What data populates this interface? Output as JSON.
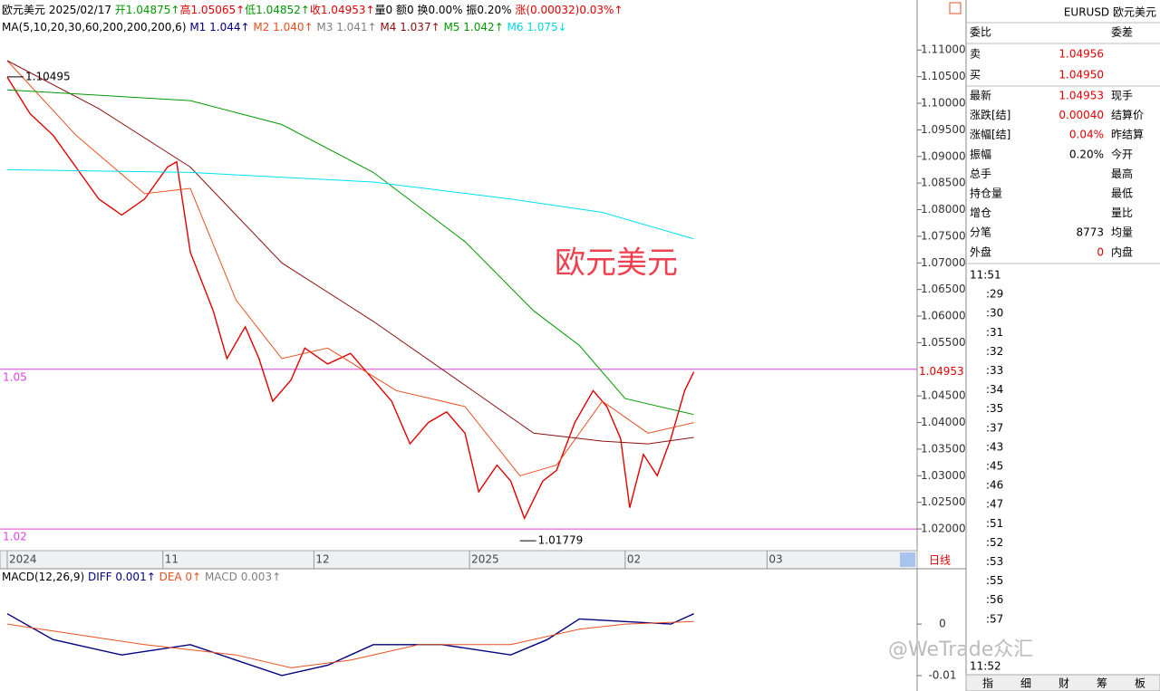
{
  "header": {
    "segments": [
      {
        "text": "欧元美元 2025/02/17 ",
        "color": "#000000"
      },
      {
        "text": "开1.04875↑",
        "color": "#009900"
      },
      {
        "text": "高1.05065↑",
        "color": "#e00000"
      },
      {
        "text": "低1.04852↑",
        "color": "#009900"
      },
      {
        "text": "收1.04953↑",
        "color": "#e00000"
      },
      {
        "text": "量0 额0 换0.00% 振0.20% ",
        "color": "#000000"
      },
      {
        "text": "涨(0.00032)0.03%↑",
        "color": "#e00000"
      }
    ]
  },
  "ma_legend": {
    "segments": [
      {
        "text": "MA(5,10,20,30,60,200,200,200,6)  ",
        "color": "#000000"
      },
      {
        "text": "M1 1.044↑  ",
        "color": "#000080"
      },
      {
        "text": "M2 1.040↑  ",
        "color": "#e85020"
      },
      {
        "text": "M3 1.041↑  ",
        "color": "#808080"
      },
      {
        "text": "M4 1.037↑  ",
        "color": "#8b1010"
      },
      {
        "text": "M5 1.042↑  ",
        "color": "#009900"
      },
      {
        "text": "M6 1.075↓",
        "color": "#00d8e8"
      }
    ]
  },
  "macd_legend": {
    "segments": [
      {
        "text": "MACD(12,26,9)  ",
        "color": "#000000"
      },
      {
        "text": "DIFF 0.001↑  ",
        "color": "#000080"
      },
      {
        "text": "DEA 0↑  ",
        "color": "#e85020"
      },
      {
        "text": "MACD 0.003↑",
        "color": "#808080"
      }
    ]
  },
  "chart_data": [
    {
      "type": "line",
      "xlim": [
        0,
        198
      ],
      "ylim": [
        1.0161,
        1.1194
      ],
      "yticks": [
        {
          "value": 1.02,
          "label": "1.02000"
        },
        {
          "value": 1.025,
          "label": "1.02500"
        },
        {
          "value": 1.03,
          "label": "1.03000"
        },
        {
          "value": 1.035,
          "label": "1.03500"
        },
        {
          "value": 1.04,
          "label": "1.04000"
        },
        {
          "value": 1.045,
          "label": "1.04500"
        },
        {
          "value": 1.055,
          "label": "1.05500"
        },
        {
          "value": 1.06,
          "label": "1.06000"
        },
        {
          "value": 1.065,
          "label": "1.06500"
        },
        {
          "value": 1.07,
          "label": "1.07000"
        },
        {
          "value": 1.075,
          "label": "1.07500"
        },
        {
          "value": 1.08,
          "label": "1.08000"
        },
        {
          "value": 1.085,
          "label": "1.08500"
        },
        {
          "value": 1.09,
          "label": "1.09000"
        },
        {
          "value": 1.095,
          "label": "1.09500"
        },
        {
          "value": 1.1,
          "label": "1.10000"
        },
        {
          "value": 1.105,
          "label": "1.10500"
        },
        {
          "value": 1.11,
          "label": "1.11000"
        }
      ],
      "xticks": [
        {
          "value": 0,
          "label": "2024"
        },
        {
          "value": 34,
          "label": "11"
        },
        {
          "value": 67,
          "label": "12"
        },
        {
          "value": 101,
          "label": "2025"
        },
        {
          "value": 135,
          "label": "02"
        },
        {
          "value": 166,
          "label": "03"
        }
      ],
      "series": [
        {
          "color": "#e00000",
          "x": [
            0,
            5,
            10,
            15,
            20,
            25,
            30,
            35,
            37,
            40,
            45,
            48,
            52,
            55,
            58,
            62,
            65,
            70,
            75,
            80,
            84,
            88,
            92,
            96,
            100,
            103,
            107,
            110,
            113,
            117,
            120,
            124,
            128,
            131,
            134,
            136,
            139,
            142,
            145,
            148,
            150
          ],
          "values": [
            1.1049,
            1.098,
            1.094,
            1.088,
            1.082,
            1.079,
            1.082,
            1.088,
            1.089,
            1.072,
            1.061,
            1.052,
            1.058,
            1.052,
            1.044,
            1.048,
            1.054,
            1.051,
            1.053,
            1.048,
            1.044,
            1.036,
            1.04,
            1.042,
            1.038,
            1.027,
            1.032,
            1.029,
            1.022,
            1.029,
            1.031,
            1.04,
            1.046,
            1.043,
            1.037,
            1.024,
            1.034,
            1.03,
            1.037,
            1.046,
            1.0495
          ]
        },
        {
          "color": "#e85020",
          "x": [
            0,
            15,
            30,
            40,
            50,
            60,
            70,
            85,
            100,
            112,
            120,
            130,
            140,
            150
          ],
          "values": [
            1.108,
            1.094,
            1.083,
            1.084,
            1.063,
            1.052,
            1.054,
            1.046,
            1.043,
            1.03,
            1.032,
            1.044,
            1.038,
            1.04
          ]
        },
        {
          "color": "#8b1010",
          "x": [
            0,
            20,
            40,
            60,
            80,
            100,
            115,
            130,
            140,
            150
          ],
          "values": [
            1.108,
            1.099,
            1.088,
            1.07,
            1.059,
            1.047,
            1.038,
            1.0365,
            1.036,
            1.0372
          ]
        },
        {
          "color": "#009900",
          "x": [
            0,
            40,
            60,
            80,
            100,
            115,
            125,
            135,
            150
          ],
          "values": [
            1.1025,
            1.1005,
            1.096,
            1.087,
            1.074,
            1.061,
            1.0545,
            1.0445,
            1.0415
          ]
        },
        {
          "color": "#00e0f0",
          "x": [
            0,
            40,
            80,
            110,
            130,
            150
          ],
          "values": [
            1.0875,
            1.087,
            1.0852,
            1.082,
            1.0795,
            1.0745
          ]
        }
      ],
      "hlines": [
        {
          "value": 1.05,
          "label": "1.05",
          "color": "#e040e0"
        },
        {
          "value": 1.02,
          "label": "1.02",
          "color": "#e040e0"
        }
      ],
      "extremes": [
        {
          "x": 0,
          "value": 1.10495,
          "label": "1.10495"
        },
        {
          "x": 112,
          "value": 1.01779,
          "label": "1.01779"
        }
      ],
      "last": {
        "value": 1.04953,
        "label": "1.04953"
      },
      "big_label": "欧元美元",
      "period_tab": "日线"
    },
    {
      "type": "line",
      "xlim": [
        0,
        198
      ],
      "ylim": [
        -0.013,
        0.0104
      ],
      "yticks": [
        0,
        -0.01
      ],
      "series": [
        {
          "color": "#000080",
          "x": [
            0,
            10,
            25,
            40,
            50,
            60,
            70,
            80,
            95,
            110,
            118,
            125,
            135,
            145,
            150
          ],
          "values": [
            0.002,
            -0.003,
            -0.006,
            -0.004,
            -0.007,
            -0.01,
            -0.008,
            -0.004,
            -0.004,
            -0.006,
            -0.003,
            0.001,
            0.0005,
            0,
            0.002
          ]
        },
        {
          "color": "#e85020",
          "x": [
            0,
            15,
            30,
            50,
            62,
            75,
            90,
            110,
            125,
            135,
            150
          ],
          "values": [
            0,
            -0.002,
            -0.004,
            -0.006,
            -0.0085,
            -0.007,
            -0.004,
            -0.004,
            -0.001,
            0,
            0.0005
          ]
        }
      ]
    }
  ],
  "quote": {
    "title": "EURUSD 欧元美元",
    "head": [
      "委比",
      "委差"
    ],
    "sell": {
      "label": "卖",
      "value": "1.04956"
    },
    "buy": {
      "label": "买",
      "value": "1.04950"
    },
    "rows": [
      {
        "label": "最新",
        "value": "1.04953",
        "label2": "现手"
      },
      {
        "label": "涨跌[结]",
        "value": "0.00040",
        "label2": "结算价"
      },
      {
        "label": "涨幅[结]",
        "value": "0.04%",
        "label2": "昨结算"
      },
      {
        "label": "振幅",
        "value": "0.20%",
        "label2": "今开"
      },
      {
        "label": "总手",
        "label2": "最高"
      },
      {
        "label": "持仓量",
        "label2": "最低"
      },
      {
        "label": "增仓",
        "label2": "量比"
      },
      {
        "label": "分笔",
        "value": "8773",
        "label2": "均量"
      },
      {
        "label": "外盘",
        "value": "0",
        "label2": "内盘"
      }
    ]
  },
  "times": [
    "11:51",
    ":29",
    ":30",
    ":31",
    ":32",
    ":33",
    ":34",
    ":35",
    ":37",
    ":43",
    ":45",
    ":46",
    ":47",
    ":51",
    ":52",
    ":53",
    ":55",
    ":56",
    ":57",
    "11:52"
  ],
  "tabs": [
    "指",
    "细",
    "财",
    "筹",
    "板"
  ],
  "watermark": "@WeTrade众汇"
}
